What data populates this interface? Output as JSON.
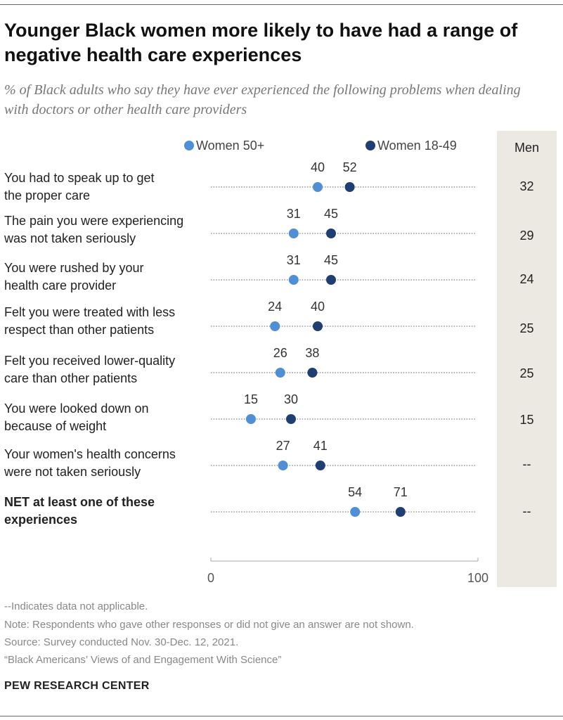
{
  "title": "Younger Black women more likely to have had a range of negative health care experiences",
  "subtitle": "% of Black adults who say they have ever experienced the following problems when dealing with doctors or other health care providers",
  "colors": {
    "women_50_plus": "#4e8fd6",
    "women_18_49": "#1f3f73",
    "men_column_bg": "#ece8e2"
  },
  "chart_data": {
    "type": "scatter",
    "xlim": [
      0,
      100
    ],
    "x_ticks": [
      "0",
      "100"
    ],
    "legend": [
      "Women 50+",
      "Women 18-49"
    ],
    "extra_column_label": "Men",
    "categories": [
      "You had to speak up to get the proper care",
      "The pain you were experiencing was not taken seriously",
      "You were rushed by your health care provider",
      "Felt you were treated with less respect than other patients",
      "Felt you received lower-quality care than other patients",
      "You were looked down on because of weight",
      "Your women's health concerns were not taken seriously",
      "NET at least one of these experiences"
    ],
    "series": [
      {
        "name": "Women 50+",
        "values": [
          40,
          31,
          31,
          24,
          26,
          15,
          27,
          54
        ]
      },
      {
        "name": "Women 18-49",
        "values": [
          52,
          45,
          45,
          40,
          38,
          30,
          41,
          71
        ]
      }
    ],
    "men": [
      "32",
      "29",
      "24",
      "25",
      "25",
      "15",
      "--",
      "--"
    ]
  },
  "labels": [
    [
      "You had to speak up to get",
      "the proper care"
    ],
    [
      "The pain you were experiencing",
      "was not taken seriously"
    ],
    [
      "You were rushed by your",
      "health care provider"
    ],
    [
      "Felt you were treated with less",
      "respect than other patients"
    ],
    [
      "Felt you received lower-quality",
      "care than other patients"
    ],
    [
      "You were looked down on",
      "because of weight"
    ],
    [
      "Your women's health concerns",
      "were not taken seriously"
    ],
    [
      "NET at least one of these",
      "experiences"
    ]
  ],
  "footer": {
    "na_note": "--Indicates data not applicable.",
    "note": "Note: Respondents who gave other responses or did not give an answer are not shown.",
    "source": "Source: Survey conducted Nov. 30-Dec. 12, 2021.",
    "report": "“Black Americans’ Views of and Engagement With Science”",
    "brand": "PEW RESEARCH CENTER"
  }
}
